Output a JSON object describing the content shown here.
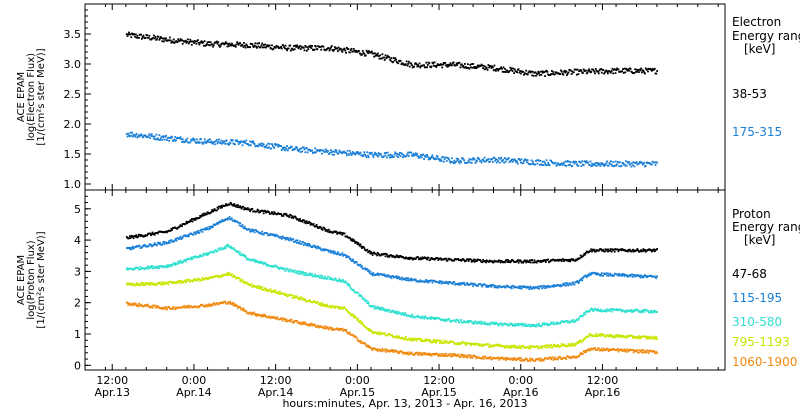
{
  "chart_data": [
    {
      "type": "scatter",
      "panel": "electron",
      "ylabel_lines": [
        "ACE EPAM",
        "log(Electron Flux)",
        "[1/(cm²s ster MeV)]"
      ],
      "ylim": [
        0.9,
        4.0
      ],
      "yticks": [
        1.0,
        1.5,
        2.0,
        2.5,
        3.0,
        3.5
      ],
      "ytick_labels": [
        "1.0",
        "1.5",
        "2.0",
        "2.5",
        "3.0",
        "3.5"
      ],
      "legend_title_lines": [
        "Electron",
        "Energy ranges",
        "[keV]"
      ],
      "series": [
        {
          "name": "38-53",
          "color": "#000000",
          "x": [
            6,
            12,
            18,
            24,
            30,
            36,
            42,
            48,
            54,
            60,
            66,
            72,
            78,
            84
          ],
          "y": [
            3.5,
            3.42,
            3.35,
            3.33,
            3.28,
            3.28,
            3.18,
            3.0,
            3.0,
            2.95,
            2.85,
            2.88,
            2.9,
            2.9
          ]
        },
        {
          "name": "175-315",
          "color": "#1a7fd6",
          "x": [
            6,
            12,
            18,
            24,
            30,
            36,
            42,
            48,
            54,
            60,
            66,
            72,
            78,
            84
          ],
          "y": [
            1.85,
            1.78,
            1.72,
            1.7,
            1.6,
            1.55,
            1.5,
            1.5,
            1.4,
            1.42,
            1.38,
            1.35,
            1.35,
            1.35
          ]
        }
      ]
    },
    {
      "type": "scatter",
      "panel": "proton",
      "ylabel_lines": [
        "ACE EPAM",
        "log(Proton Flux)",
        "[1/(cm²s ster MeV)]"
      ],
      "ylim": [
        -0.15,
        5.6
      ],
      "yticks": [
        0,
        1,
        2,
        3,
        4,
        5
      ],
      "ytick_labels": [
        "0",
        "1",
        "2",
        "3",
        "4",
        "5"
      ],
      "legend_title_lines": [
        "Proton",
        "Energy ranges",
        "[keV]"
      ],
      "series": [
        {
          "name": "47-68",
          "color": "#000000",
          "x": [
            6,
            12,
            18,
            21,
            24,
            30,
            36,
            38,
            42,
            48,
            54,
            60,
            66,
            72,
            74,
            84
          ],
          "y": [
            4.1,
            4.3,
            4.9,
            5.2,
            5.0,
            4.8,
            4.3,
            4.2,
            3.6,
            3.45,
            3.4,
            3.35,
            3.35,
            3.4,
            3.7,
            3.7
          ]
        },
        {
          "name": "115-195",
          "color": "#1a7fd6",
          "x": [
            6,
            12,
            18,
            21,
            24,
            30,
            36,
            38,
            42,
            48,
            54,
            60,
            66,
            72,
            74,
            84
          ],
          "y": [
            3.75,
            3.95,
            4.4,
            4.75,
            4.35,
            4.05,
            3.65,
            3.55,
            2.95,
            2.75,
            2.65,
            2.55,
            2.5,
            2.65,
            2.95,
            2.85
          ]
        },
        {
          "name": "310-580",
          "color": "#30e0d0",
          "x": [
            6,
            12,
            18,
            21,
            24,
            30,
            36,
            38,
            42,
            48,
            54,
            60,
            66,
            72,
            74,
            84
          ],
          "y": [
            3.1,
            3.2,
            3.6,
            3.85,
            3.4,
            3.05,
            2.8,
            2.7,
            1.9,
            1.6,
            1.45,
            1.35,
            1.3,
            1.45,
            1.8,
            1.75
          ]
        },
        {
          "name": "795-1193",
          "color": "#c8e600",
          "x": [
            6,
            12,
            18,
            21,
            24,
            30,
            36,
            38,
            42,
            48,
            54,
            60,
            66,
            72,
            74,
            84
          ],
          "y": [
            2.6,
            2.65,
            2.8,
            2.95,
            2.6,
            2.25,
            1.9,
            1.85,
            1.1,
            0.85,
            0.75,
            0.65,
            0.6,
            0.7,
            1.0,
            0.9
          ]
        },
        {
          "name": "1060-1900",
          "color": "#f08a10",
          "x": [
            6,
            12,
            18,
            21,
            24,
            30,
            36,
            38,
            42,
            48,
            54,
            60,
            66,
            72,
            74,
            84
          ],
          "y": [
            2.0,
            1.85,
            1.95,
            2.05,
            1.7,
            1.45,
            1.2,
            1.15,
            0.55,
            0.4,
            0.35,
            0.25,
            0.2,
            0.3,
            0.55,
            0.45
          ]
        }
      ]
    }
  ],
  "x_axis": {
    "xlim": [
      0,
      94
    ],
    "ticks": [
      {
        "x": 4,
        "time": "12:00",
        "date": "Apr.13"
      },
      {
        "x": 16,
        "time": "0:00",
        "date": "Apr.14"
      },
      {
        "x": 28,
        "time": "12:00",
        "date": "Apr.14"
      },
      {
        "x": 40,
        "time": "0:00",
        "date": "Apr.15"
      },
      {
        "x": 52,
        "time": "12:00",
        "date": "Apr.15"
      },
      {
        "x": 64,
        "time": "0:00",
        "date": "Apr.16"
      },
      {
        "x": 76,
        "time": "12:00",
        "date": "Apr.16"
      }
    ],
    "xlabel": "hours:minutes, Apr. 13, 2013 - Apr. 16, 2013"
  }
}
